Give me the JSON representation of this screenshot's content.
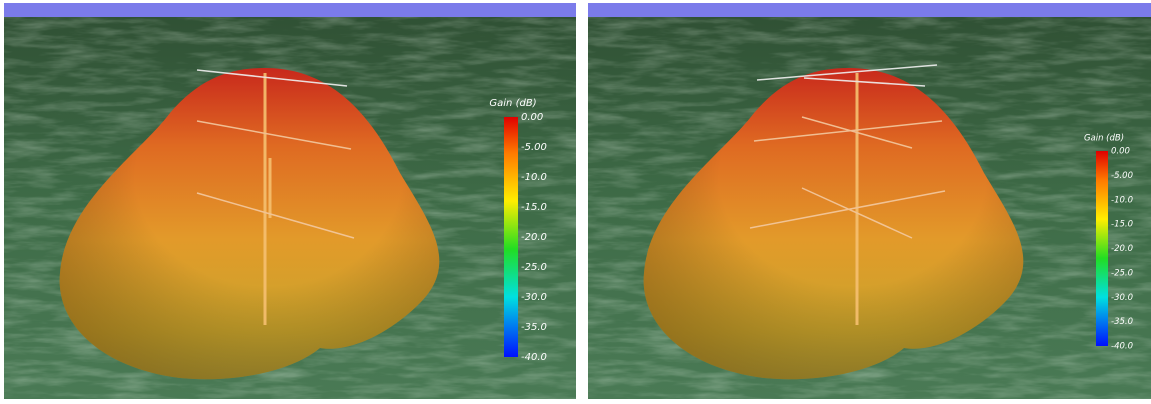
{
  "panels": [
    {
      "colorbar": {
        "title": "Gain (dB)",
        "labels": [
          "0.00",
          "-5.00",
          "-10.0",
          "-15.0",
          "-20.0",
          "-25.0",
          "-30.0",
          "-35.0",
          "-40.0"
        ]
      }
    },
    {
      "colorbar": {
        "title": "Gain (dB)",
        "labels": [
          "0.00",
          "-5.00",
          "-10.0",
          "-15.0",
          "-20.0",
          "-25.0",
          "-30.0",
          "-35.0",
          "-40.0"
        ]
      }
    }
  ]
}
